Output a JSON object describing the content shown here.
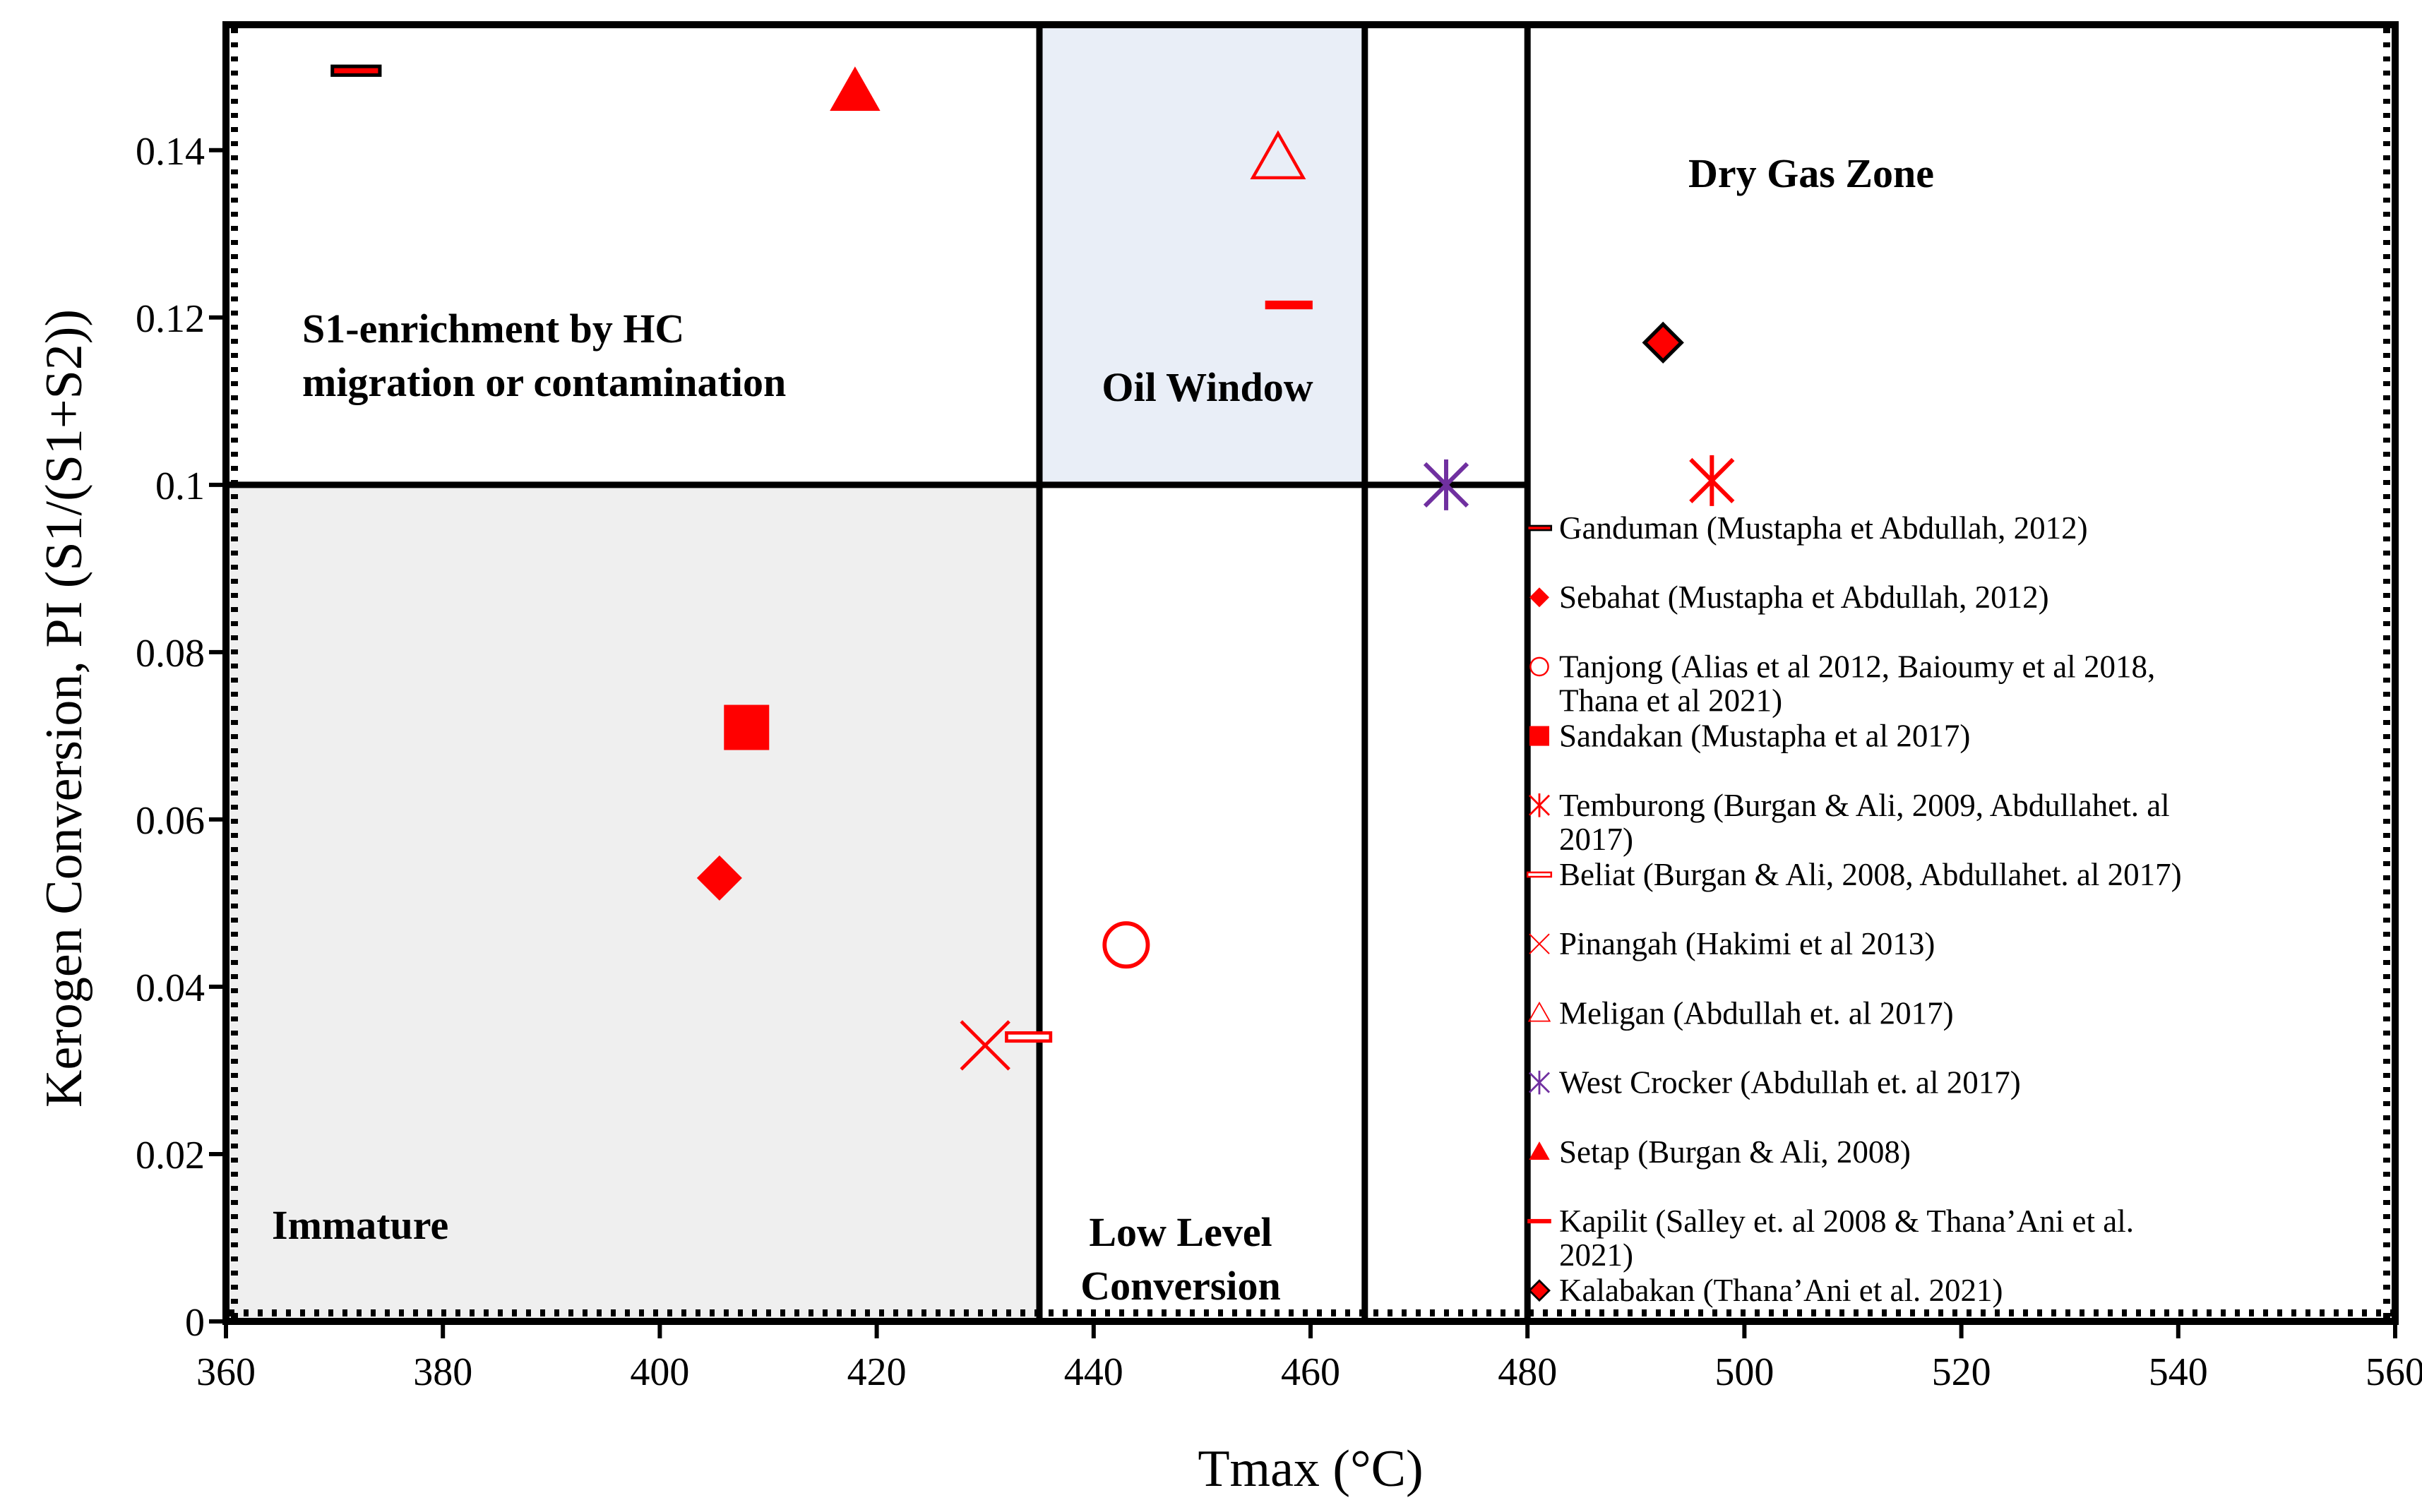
{
  "chart_data": {
    "type": "scatter",
    "xlabel": "Tmax (°C)",
    "ylabel": "Kerogen Conversion, PI (S1/(S1+S2))",
    "xlim": [
      360,
      560
    ],
    "ylim": [
      0,
      0.155
    ],
    "xticks": [
      360,
      380,
      400,
      420,
      440,
      460,
      480,
      500,
      520,
      540,
      560
    ],
    "yticks": [
      0,
      0.02,
      0.04,
      0.06,
      0.08,
      0.1,
      0.12,
      0.14
    ],
    "ytick_labels": [
      "0",
      "0.02",
      "0.04",
      "0.06",
      "0.08",
      "0.1",
      "0.12",
      "0.14"
    ],
    "zones": [
      {
        "name": "Immature",
        "label_lines": [
          "Immature"
        ],
        "x": [
          360,
          435
        ],
        "y": [
          0,
          0.1
        ],
        "fill": "#efefef"
      },
      {
        "name": "Low Level Conversion",
        "label_lines": [
          "Low Level",
          "Conversion"
        ],
        "x": [
          435,
          465
        ],
        "y": [
          0,
          0.1
        ],
        "fill": "#ffffff"
      },
      {
        "name": "S1-enrichment",
        "label_lines": [
          "S1-enrichment by HC",
          "migration or contamination"
        ],
        "x": [
          360,
          435
        ],
        "y": [
          0.1,
          0.155
        ],
        "fill": "#ffffff"
      },
      {
        "name": "Oil Window",
        "label_lines": [
          "Oil Window"
        ],
        "x": [
          435,
          465
        ],
        "y": [
          0.1,
          0.155
        ],
        "fill": "#e9eef7"
      },
      {
        "name": "Dry Gas Zone",
        "label_lines": [
          "Dry Gas Zone"
        ],
        "x": [
          480,
          560
        ],
        "y": [
          0.1,
          0.155
        ],
        "fill": "#ffffff"
      }
    ],
    "boundaries": {
      "vertical": [
        435,
        465,
        480
      ],
      "horizontal": 0.1
    },
    "series": [
      {
        "name": "Ganduman (Mustapha et Abdullah, 2012)",
        "marker": "dash-black",
        "x": 372,
        "y": 0.1495
      },
      {
        "name": "Sebahat (Mustapha et Abdullah, 2012)",
        "marker": "diamond",
        "x": 405.5,
        "y": 0.053
      },
      {
        "name": "Tanjong (Alias et al 2012, Baioumy et al 2018, Thana et al 2021)",
        "marker": "circle-open",
        "x": 443,
        "y": 0.045
      },
      {
        "name": "Sandakan (Mustapha et al 2017)",
        "marker": "square",
        "x": 408,
        "y": 0.071
      },
      {
        "name": "Temburong (Burgan & Ali, 2009, Abdullahet. al 2017)",
        "marker": "asterisk-red",
        "x": 497,
        "y": 0.1005
      },
      {
        "name": "Beliat (Burgan & Ali, 2008, Abdullahet. al 2017)",
        "marker": "dash-open",
        "x": 434,
        "y": 0.034
      },
      {
        "name": "Pinangah (Hakimi et al 2013)",
        "marker": "x",
        "x": 430,
        "y": 0.033
      },
      {
        "name": "Meligan (Abdullah et. al 2017)",
        "marker": "triangle-open",
        "x": 457,
        "y": 0.139
      },
      {
        "name": "West Crocker (Abdullah et. al 2017)",
        "marker": "asterisk-purple",
        "x": 472.5,
        "y": 0.1
      },
      {
        "name": "Setap (Burgan & Ali, 2008)",
        "marker": "triangle",
        "x": 418,
        "y": 0.147
      },
      {
        "name": "Kapilit (Salley et. al 2008 & Thana’Ani et al. 2021)",
        "marker": "dash-red",
        "x": 458,
        "y": 0.1215
      },
      {
        "name": "Kalabakan (Thana’Ani et al. 2021)",
        "marker": "diamond-black-edge",
        "x": 492.5,
        "y": 0.117
      }
    ],
    "legend_position": "right-middle",
    "colors": {
      "red": "#ff0000",
      "purple": "#7030a0",
      "black": "#000000"
    }
  }
}
